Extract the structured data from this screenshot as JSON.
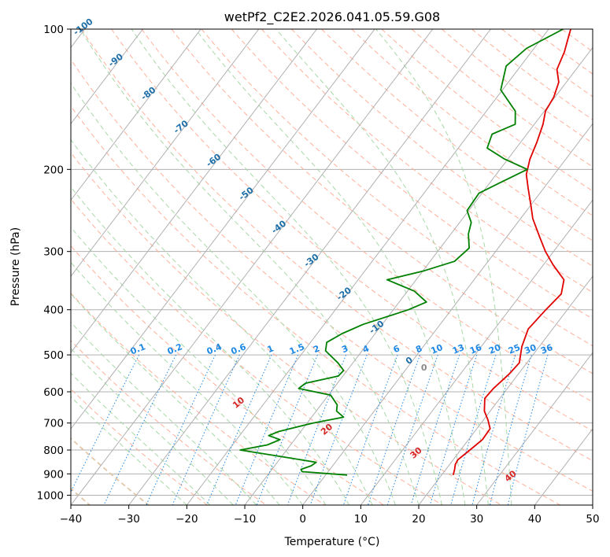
{
  "chart_data": {
    "type": "skew-t",
    "title": "wetPf2_C2E2.2026.041.05.59.G08",
    "xlabel": "Temperature (°C)",
    "ylabel": "Pressure (hPa)",
    "xlim": [
      -40,
      50
    ],
    "ylim": [
      1050,
      100
    ],
    "y_scale": "log",
    "x_ticks": [
      "−40",
      "−30",
      "−20",
      "−10",
      "0",
      "10",
      "20",
      "30",
      "40",
      "50"
    ],
    "y_ticks": [
      "100",
      "200",
      "300",
      "400",
      "500",
      "600",
      "700",
      "800",
      "900",
      "1000"
    ],
    "grid": true,
    "series": [
      {
        "role": "temperature",
        "color": "#e00000",
        "points": [
          {
            "p": 905,
            "t": 22.0
          },
          {
            "p": 880,
            "t": 21.5
          },
          {
            "p": 860,
            "t": 21.0
          },
          {
            "p": 840,
            "t": 20.8
          },
          {
            "p": 800,
            "t": 21.6
          },
          {
            "p": 760,
            "t": 22.4
          },
          {
            "p": 720,
            "t": 22.3
          },
          {
            "p": 690,
            "t": 20.8
          },
          {
            "p": 660,
            "t": 19.0
          },
          {
            "p": 620,
            "t": 17.4
          },
          {
            "p": 590,
            "t": 17.6
          },
          {
            "p": 550,
            "t": 18.4
          },
          {
            "p": 520,
            "t": 18.7
          },
          {
            "p": 480,
            "t": 17.0
          },
          {
            "p": 440,
            "t": 15.8
          },
          {
            "p": 400,
            "t": 16.3
          },
          {
            "p": 370,
            "t": 16.9
          },
          {
            "p": 345,
            "t": 15.5
          },
          {
            "p": 320,
            "t": 11.6
          },
          {
            "p": 300,
            "t": 8.6
          },
          {
            "p": 280,
            "t": 5.8
          },
          {
            "p": 255,
            "t": 2.1
          },
          {
            "p": 240,
            "t": 0.2
          },
          {
            "p": 220,
            "t": -2.6
          },
          {
            "p": 205,
            "t": -4.8
          },
          {
            "p": 190,
            "t": -6.2
          },
          {
            "p": 175,
            "t": -7.2
          },
          {
            "p": 160,
            "t": -8.5
          },
          {
            "p": 150,
            "t": -9.8
          },
          {
            "p": 140,
            "t": -10.2
          },
          {
            "p": 130,
            "t": -11.3
          },
          {
            "p": 122,
            "t": -13.3
          },
          {
            "p": 112,
            "t": -14.3
          },
          {
            "p": 105,
            "t": -15.4
          },
          {
            "p": 100,
            "t": -16.2
          }
        ]
      },
      {
        "role": "dewpoint",
        "color": "#008000",
        "points": [
          {
            "p": 905,
            "t": 3.7
          },
          {
            "p": 890,
            "t": -4.5
          },
          {
            "p": 880,
            "t": -5.0
          },
          {
            "p": 865,
            "t": -3.7
          },
          {
            "p": 850,
            "t": -3.3
          },
          {
            "p": 830,
            "t": -9.0
          },
          {
            "p": 800,
            "t": -18.0
          },
          {
            "p": 780,
            "t": -14.0
          },
          {
            "p": 760,
            "t": -12.5
          },
          {
            "p": 745,
            "t": -15.0
          },
          {
            "p": 730,
            "t": -13.8
          },
          {
            "p": 700,
            "t": -9.0
          },
          {
            "p": 680,
            "t": -4.5
          },
          {
            "p": 660,
            "t": -6.5
          },
          {
            "p": 640,
            "t": -7.2
          },
          {
            "p": 610,
            "t": -9.6
          },
          {
            "p": 590,
            "t": -16.0
          },
          {
            "p": 575,
            "t": -15.5
          },
          {
            "p": 555,
            "t": -10.8
          },
          {
            "p": 540,
            "t": -10.6
          },
          {
            "p": 520,
            "t": -12.6
          },
          {
            "p": 490,
            "t": -16.3
          },
          {
            "p": 470,
            "t": -17.2
          },
          {
            "p": 450,
            "t": -15.7
          },
          {
            "p": 430,
            "t": -13.3
          },
          {
            "p": 400,
            "t": -7.4
          },
          {
            "p": 385,
            "t": -5.3
          },
          {
            "p": 365,
            "t": -8.8
          },
          {
            "p": 345,
            "t": -15.0
          },
          {
            "p": 330,
            "t": -9.8
          },
          {
            "p": 315,
            "t": -5.8
          },
          {
            "p": 295,
            "t": -5.0
          },
          {
            "p": 275,
            "t": -7.0
          },
          {
            "p": 260,
            "t": -8.0
          },
          {
            "p": 245,
            "t": -10.3
          },
          {
            "p": 225,
            "t": -10.5
          },
          {
            "p": 210,
            "t": -7.5
          },
          {
            "p": 200,
            "t": -5.3
          },
          {
            "p": 190,
            "t": -10.6
          },
          {
            "p": 180,
            "t": -15.0
          },
          {
            "p": 168,
            "t": -16.0
          },
          {
            "p": 160,
            "t": -13.3
          },
          {
            "p": 150,
            "t": -15.0
          },
          {
            "p": 135,
            "t": -20.3
          },
          {
            "p": 120,
            "t": -22.5
          },
          {
            "p": 110,
            "t": -21.3
          },
          {
            "p": 100,
            "t": -17.5
          }
        ]
      }
    ],
    "background": {
      "isotherm_color": "#b0b0b0",
      "dry_adiabat_color": "#ffb09a",
      "moist_adiabat_color": "#a8d8a8",
      "mixing_ratio_color": "#1e88e5",
      "isotherm_label_color": "#1f6fa8",
      "dry_adiabat_label_color": "#d62728",
      "mixing_ratio_values": [
        "0.1",
        "0.2",
        "0.4",
        "0.6",
        "1",
        "1.5",
        "2",
        "3",
        "4",
        "6",
        "8",
        "10",
        "13",
        "16",
        "20",
        "25",
        "30",
        "36"
      ],
      "isotherm_labels": [
        "-100",
        "-90",
        "-80",
        "-70",
        "-60",
        "-50",
        "-40",
        "-30",
        "-20",
        "-10",
        "0"
      ],
      "dry_adiabat_labels": [
        "10",
        "20",
        "30",
        "40"
      ]
    }
  }
}
